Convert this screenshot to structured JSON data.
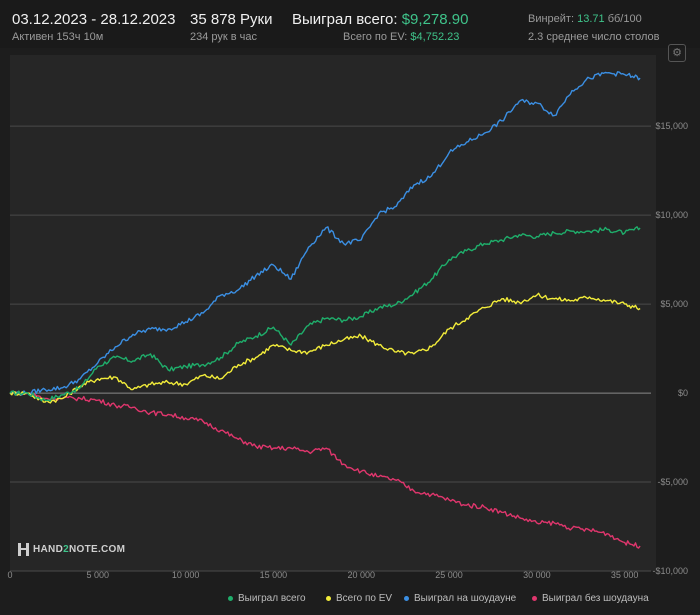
{
  "header": {
    "date_range": "03.12.2023 - 28.12.2023",
    "active": "Активен 153ч 10м",
    "hands": "35 878 Руки",
    "hands_per_hour": "234 рук в час",
    "won_label": "Выиграл всего:",
    "won_value": "$9,278.90",
    "ev_label": "Всего по EV:",
    "ev_value": "$4,752.23",
    "winrate_label": "Винрейт:",
    "winrate_value": "13.71",
    "winrate_unit": "бб/100",
    "tables": "2.3 среднее число столов"
  },
  "logo": {
    "text_a": "HAND",
    "text_b": "2",
    "text_c": "NOTE.COM"
  },
  "colors": {
    "won": "#1fae6b",
    "ev": "#f2ec3a",
    "showdown": "#3b8fe3",
    "no_showdown": "#e0366d"
  },
  "legend": [
    {
      "label": "Выиграл всего",
      "color": "#1fae6b"
    },
    {
      "label": "Всего по EV",
      "color": "#f2ec3a"
    },
    {
      "label": "Выиграл на шоудауне",
      "color": "#3b8fe3"
    },
    {
      "label": "Выиграл без шоудауна",
      "color": "#e0366d"
    }
  ],
  "chart_data": {
    "type": "line",
    "xlim": [
      0,
      36500
    ],
    "ylim": [
      -10000,
      19000
    ],
    "x_ticks": [
      0,
      5000,
      10000,
      15000,
      20000,
      25000,
      30000,
      35000
    ],
    "x_tick_labels": [
      "0",
      "5 000",
      "10 000",
      "15 000",
      "20 000",
      "25 000",
      "30 000",
      "35 000"
    ],
    "y_ticks": [
      -10000,
      -5000,
      0,
      5000,
      10000,
      15000
    ],
    "y_tick_labels": [
      "-$10,000",
      "-$5,000",
      "$0",
      "$5,000",
      "$10,000",
      "$15,000"
    ],
    "grid": true,
    "legend_position": "bottom-right",
    "x": [
      0,
      1000,
      2000,
      3000,
      4000,
      5000,
      6000,
      7000,
      8000,
      9000,
      10000,
      11000,
      12000,
      13000,
      14000,
      15000,
      16000,
      17000,
      18000,
      19000,
      20000,
      21000,
      22000,
      23000,
      24000,
      25000,
      26000,
      27000,
      28000,
      29000,
      30000,
      31000,
      32000,
      33000,
      34000,
      35000,
      35878
    ],
    "series": [
      {
        "name": "Выиграл всего",
        "values": [
          0,
          0,
          -400,
          -100,
          300,
          1500,
          2000,
          1800,
          2200,
          1300,
          1500,
          1600,
          2000,
          2800,
          3200,
          3700,
          2700,
          3800,
          4200,
          4100,
          4300,
          4800,
          5000,
          5600,
          6400,
          7500,
          8000,
          8400,
          8600,
          8900,
          8800,
          9000,
          9100,
          9100,
          9200,
          9000,
          9279
        ]
      },
      {
        "name": "Всего по EV",
        "values": [
          0,
          0,
          -500,
          -300,
          400,
          800,
          900,
          200,
          500,
          600,
          500,
          1000,
          800,
          1600,
          2000,
          2700,
          2400,
          2300,
          2700,
          3000,
          3200,
          2700,
          2300,
          2200,
          2600,
          3600,
          4200,
          4800,
          5300,
          5100,
          5500,
          5300,
          5200,
          5400,
          5200,
          5000,
          4752
        ]
      },
      {
        "name": "Выиграл на шоудауне",
        "values": [
          0,
          0,
          200,
          300,
          800,
          1700,
          2600,
          3300,
          3600,
          3600,
          4000,
          4500,
          5500,
          5800,
          6600,
          7200,
          6400,
          8200,
          9300,
          8400,
          8600,
          10100,
          10500,
          11700,
          12200,
          13500,
          14100,
          14600,
          15300,
          16400,
          16300,
          15600,
          17000,
          17700,
          18000,
          17900,
          17700
        ]
      },
      {
        "name": "Выиграл без шоудауна",
        "values": [
          0,
          0,
          -300,
          -300,
          -300,
          -400,
          -700,
          -800,
          -1100,
          -1200,
          -1400,
          -1600,
          -2100,
          -2600,
          -3000,
          -3100,
          -3100,
          -3300,
          -3100,
          -4000,
          -4400,
          -4700,
          -4900,
          -5500,
          -5700,
          -6000,
          -6300,
          -6400,
          -6700,
          -7000,
          -7300,
          -7300,
          -7600,
          -7700,
          -7900,
          -8400,
          -8600
        ]
      }
    ]
  }
}
